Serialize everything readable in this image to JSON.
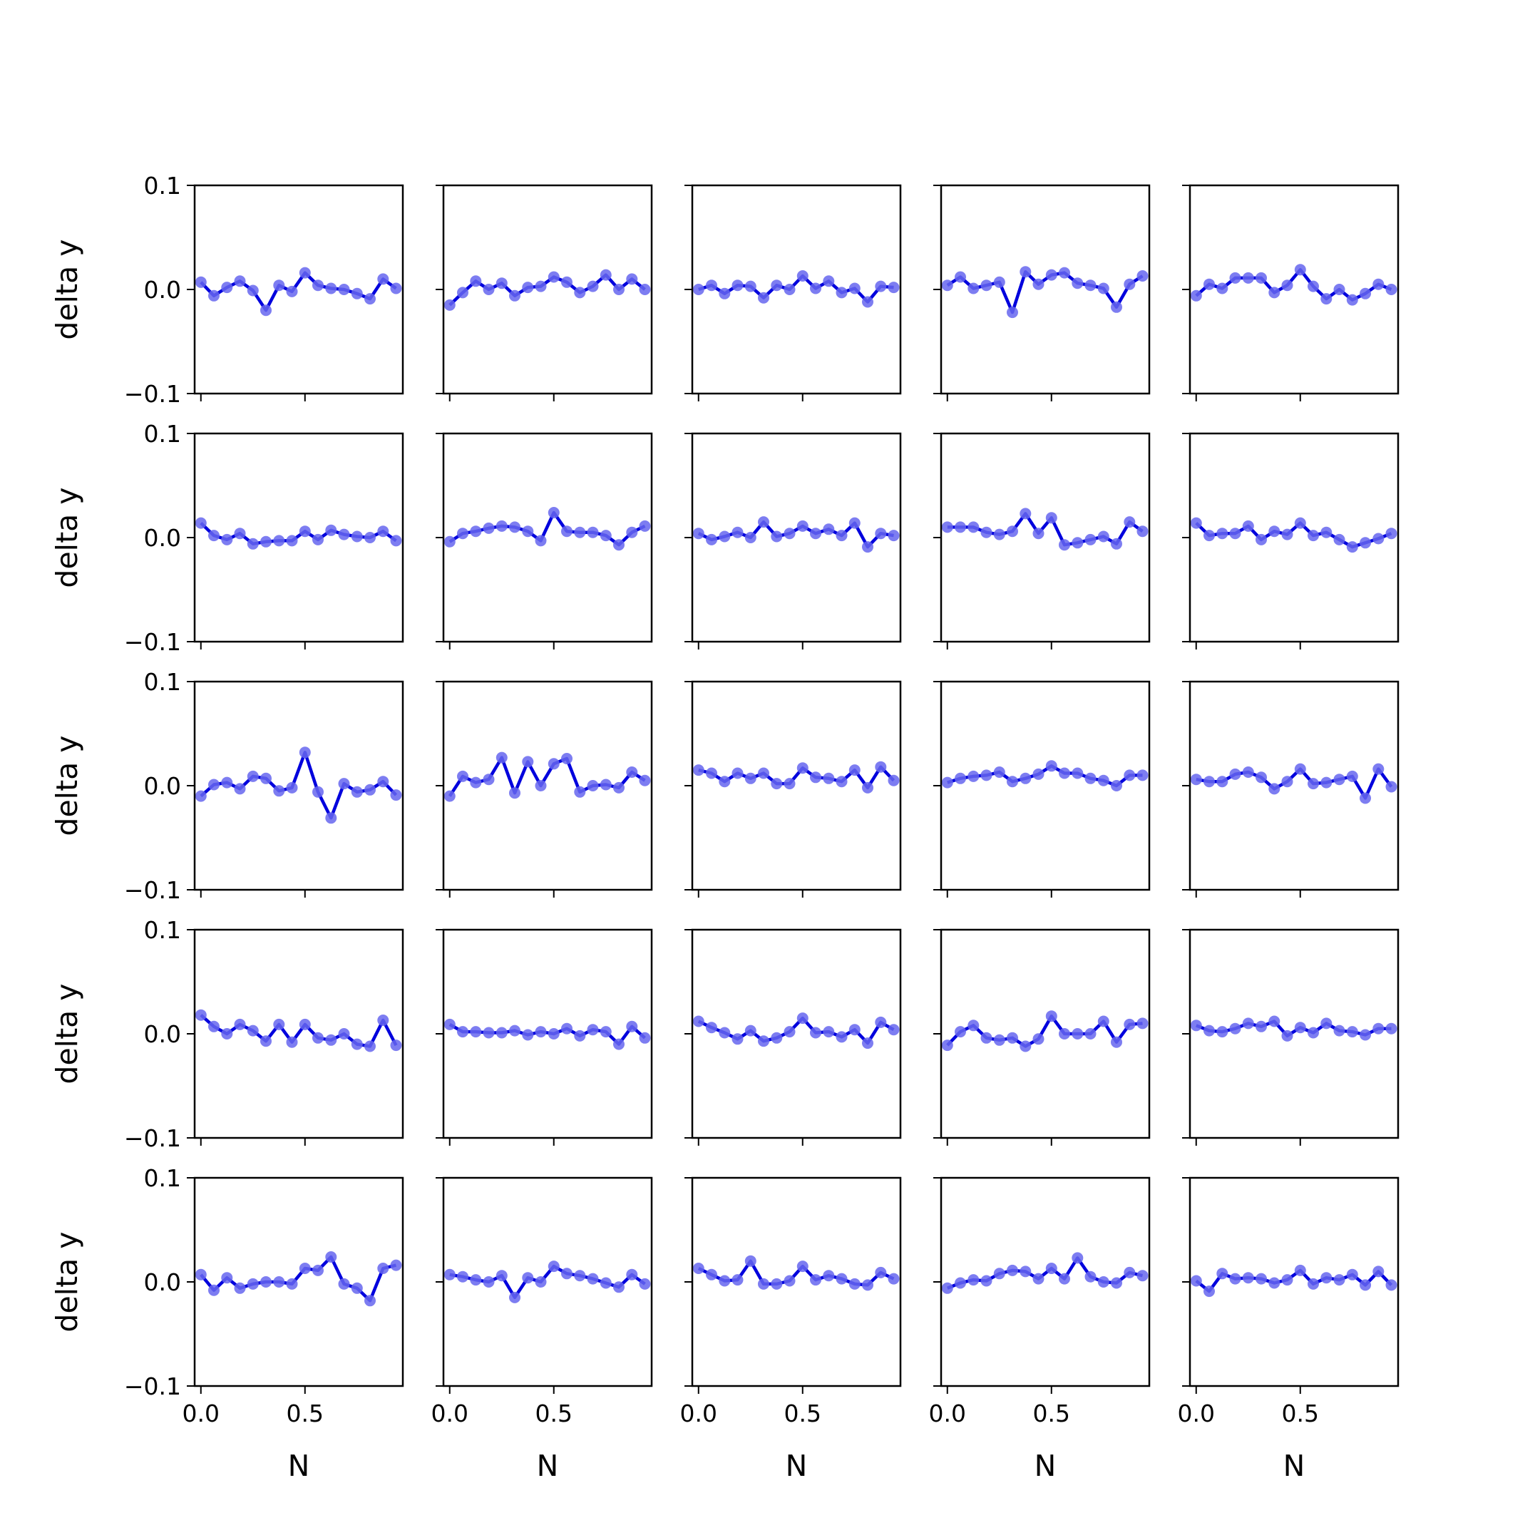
{
  "chart_data": {
    "type": "line",
    "layout": "5x5 small multiples",
    "xlabel": "N",
    "ylabel": "delta y",
    "xlim": [
      -0.03,
      0.97
    ],
    "ylim": [
      -0.1,
      0.1
    ],
    "xticks": [
      0.0,
      0.5
    ],
    "xtick_labels": [
      "0.0",
      "0.5"
    ],
    "yticks": [
      -0.1,
      0.0,
      0.1
    ],
    "ytick_labels": [
      "−0.1",
      "0.0",
      "0.1"
    ],
    "x": [
      0.0,
      0.0625,
      0.125,
      0.1875,
      0.25,
      0.3125,
      0.375,
      0.4375,
      0.5,
      0.5625,
      0.625,
      0.6875,
      0.75,
      0.8125,
      0.875,
      0.9375
    ],
    "line_color": "#0000dd",
    "marker_color": "#6666ee",
    "grid": false,
    "panels": [
      [
        0.007,
        -0.006,
        0.002,
        0.008,
        -0.001,
        -0.02,
        0.004,
        -0.002,
        0.016,
        0.004,
        0.001,
        0.0,
        -0.004,
        -0.009,
        0.01,
        0.001
      ],
      [
        -0.015,
        -0.003,
        0.008,
        0.0,
        0.006,
        -0.006,
        0.002,
        0.003,
        0.012,
        0.007,
        -0.003,
        0.003,
        0.014,
        0.0,
        0.01,
        0.0
      ],
      [
        0.0,
        0.004,
        -0.004,
        0.004,
        0.003,
        -0.008,
        0.004,
        0.0,
        0.013,
        0.001,
        0.008,
        -0.003,
        0.001,
        -0.012,
        0.003,
        0.002
      ],
      [
        0.004,
        0.012,
        0.001,
        0.004,
        0.007,
        -0.022,
        0.017,
        0.005,
        0.014,
        0.016,
        0.006,
        0.004,
        0.001,
        -0.017,
        0.005,
        0.013
      ],
      [
        -0.006,
        0.005,
        0.001,
        0.011,
        0.011,
        0.011,
        -0.003,
        0.004,
        0.019,
        0.003,
        -0.009,
        0.0,
        -0.01,
        -0.004,
        0.005,
        0.0
      ],
      [
        0.014,
        0.002,
        -0.002,
        0.004,
        -0.006,
        -0.004,
        -0.003,
        -0.003,
        0.006,
        -0.002,
        0.007,
        0.003,
        0.001,
        0.0,
        0.006,
        -0.003
      ],
      [
        -0.004,
        0.004,
        0.006,
        0.009,
        0.011,
        0.01,
        0.006,
        -0.003,
        0.024,
        0.006,
        0.005,
        0.005,
        0.002,
        -0.007,
        0.005,
        0.011
      ],
      [
        0.004,
        -0.002,
        0.001,
        0.005,
        0.0,
        0.015,
        0.001,
        0.004,
        0.011,
        0.004,
        0.008,
        0.002,
        0.014,
        -0.009,
        0.004,
        0.002
      ],
      [
        0.01,
        0.01,
        0.01,
        0.005,
        0.003,
        0.006,
        0.023,
        0.004,
        0.019,
        -0.007,
        -0.005,
        -0.002,
        0.001,
        -0.006,
        0.015,
        0.006
      ],
      [
        0.014,
        0.002,
        0.004,
        0.004,
        0.011,
        -0.002,
        0.006,
        0.003,
        0.014,
        0.002,
        0.005,
        -0.002,
        -0.009,
        -0.005,
        -0.001,
        0.004
      ],
      [
        -0.01,
        0.001,
        0.003,
        -0.003,
        0.009,
        0.007,
        -0.005,
        -0.002,
        0.032,
        -0.006,
        -0.031,
        0.002,
        -0.006,
        -0.004,
        0.004,
        -0.009
      ],
      [
        -0.01,
        0.009,
        0.003,
        0.006,
        0.027,
        -0.007,
        0.023,
        0.0,
        0.021,
        0.026,
        -0.006,
        0.0,
        0.001,
        -0.002,
        0.013,
        0.005
      ],
      [
        0.015,
        0.012,
        0.004,
        0.012,
        0.007,
        0.012,
        0.002,
        0.002,
        0.017,
        0.008,
        0.007,
        0.004,
        0.015,
        -0.002,
        0.018,
        0.005
      ],
      [
        0.003,
        0.007,
        0.009,
        0.01,
        0.013,
        0.004,
        0.007,
        0.011,
        0.019,
        0.012,
        0.012,
        0.007,
        0.005,
        0.0,
        0.01,
        0.01
      ],
      [
        0.006,
        0.004,
        0.004,
        0.011,
        0.013,
        0.008,
        -0.003,
        0.004,
        0.016,
        0.002,
        0.003,
        0.006,
        0.009,
        -0.012,
        0.016,
        -0.001
      ],
      [
        0.018,
        0.007,
        0.0,
        0.009,
        0.003,
        -0.007,
        0.009,
        -0.008,
        0.009,
        -0.004,
        -0.006,
        0.0,
        -0.01,
        -0.012,
        0.013,
        -0.011
      ],
      [
        0.009,
        0.002,
        0.002,
        0.001,
        0.001,
        0.003,
        -0.001,
        0.002,
        0.0,
        0.005,
        -0.002,
        0.004,
        0.002,
        -0.01,
        0.007,
        -0.004
      ],
      [
        0.012,
        0.006,
        0.001,
        -0.005,
        0.003,
        -0.007,
        -0.004,
        0.002,
        0.015,
        0.001,
        0.002,
        -0.003,
        0.004,
        -0.009,
        0.011,
        0.004
      ],
      [
        -0.011,
        0.002,
        0.008,
        -0.004,
        -0.006,
        -0.004,
        -0.012,
        -0.005,
        0.017,
        0.0,
        0.0,
        0.0,
        0.012,
        -0.008,
        0.009,
        0.01
      ],
      [
        0.008,
        0.003,
        0.002,
        0.005,
        0.01,
        0.007,
        0.012,
        -0.002,
        0.006,
        0.001,
        0.01,
        0.003,
        0.002,
        -0.001,
        0.005,
        0.005
      ],
      [
        0.007,
        -0.008,
        0.004,
        -0.006,
        -0.002,
        0.0,
        0.0,
        -0.002,
        0.013,
        0.011,
        0.024,
        -0.002,
        -0.006,
        -0.018,
        0.013,
        0.016
      ],
      [
        0.007,
        0.005,
        0.002,
        0.0,
        0.006,
        -0.015,
        0.004,
        0.0,
        0.015,
        0.008,
        0.006,
        0.003,
        -0.001,
        -0.005,
        0.007,
        -0.002
      ],
      [
        0.013,
        0.007,
        0.001,
        0.002,
        0.02,
        -0.002,
        -0.002,
        0.001,
        0.015,
        0.002,
        0.006,
        0.003,
        -0.002,
        -0.003,
        0.009,
        0.003
      ],
      [
        -0.006,
        -0.001,
        0.002,
        0.001,
        0.008,
        0.011,
        0.01,
        0.003,
        0.013,
        0.003,
        0.023,
        0.005,
        0.0,
        -0.001,
        0.009,
        0.006
      ],
      [
        0.001,
        -0.009,
        0.008,
        0.003,
        0.004,
        0.003,
        -0.001,
        0.002,
        0.011,
        -0.002,
        0.004,
        0.002,
        0.007,
        -0.003,
        0.01,
        -0.003
      ]
    ]
  }
}
